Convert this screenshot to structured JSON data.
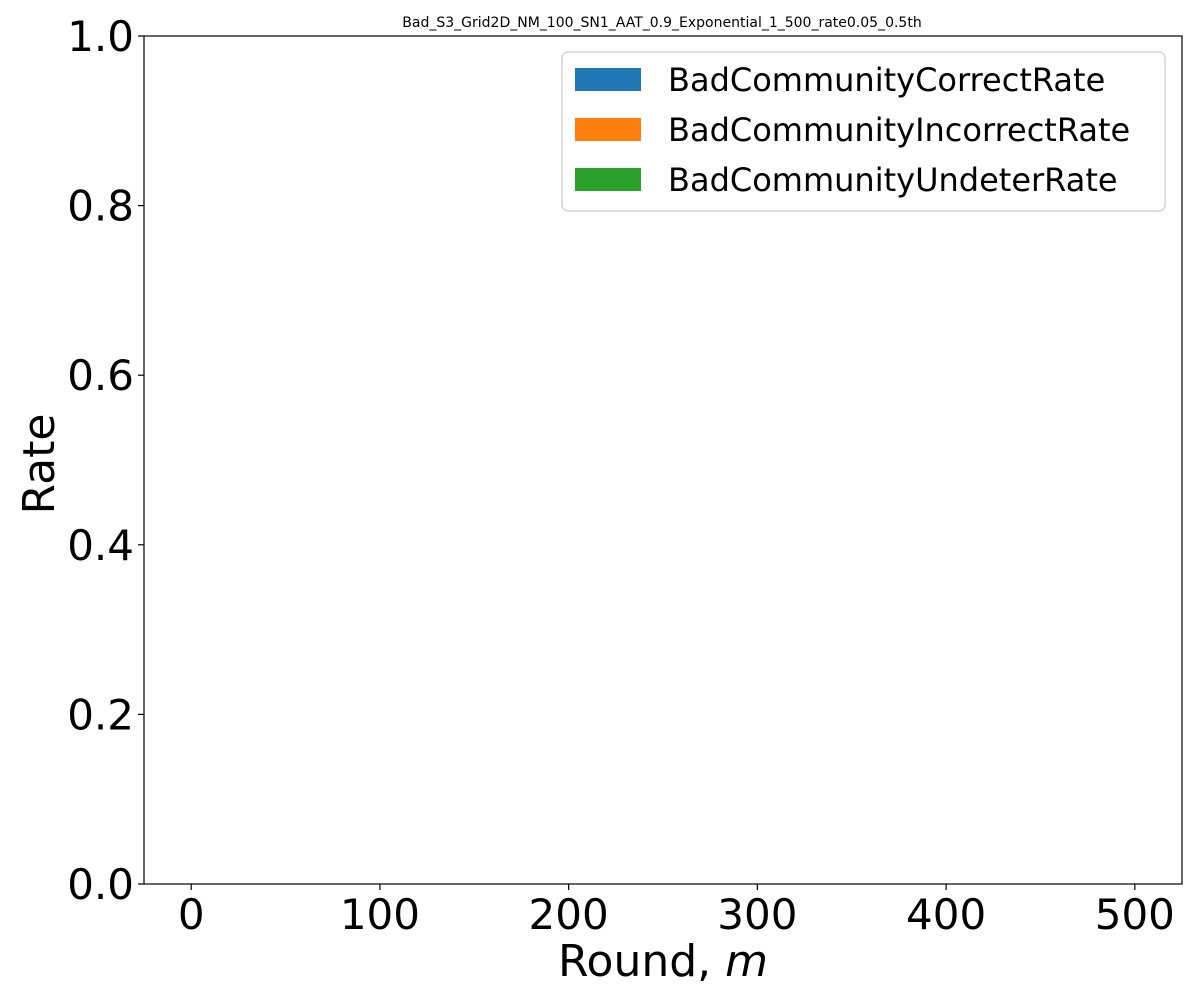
{
  "chart_data": {
    "type": "area",
    "title": "Bad_S3_Grid2D_NM_100_SN1_AAT_0.9_Exponential_1_500_rate0.05_0.5th",
    "xlabel": "Round, ",
    "xlabel_var": "m",
    "ylabel": "Rate",
    "xlim": [
      -25,
      525
    ],
    "ylim": [
      0.0,
      1.0
    ],
    "xticks": [
      0,
      100,
      200,
      300,
      400,
      500
    ],
    "xtick_labels": [
      "0",
      "100",
      "200",
      "300",
      "400",
      "500"
    ],
    "yticks": [
      0.0,
      0.2,
      0.4,
      0.6,
      0.8,
      1.0
    ],
    "ytick_labels": [
      "0.0",
      "0.2",
      "0.4",
      "0.6",
      "0.8",
      "1.0"
    ],
    "grid": false,
    "legend_position": "upper right",
    "series": [
      {
        "name": "BadCommunityCorrectRate",
        "color": "#1f77b4",
        "x": [],
        "values": []
      },
      {
        "name": "BadCommunityIncorrectRate",
        "color": "#ff7f0e",
        "x": [],
        "values": []
      },
      {
        "name": "BadCommunityUndeterRate",
        "color": "#2ca02c",
        "x": [],
        "values": []
      }
    ]
  }
}
